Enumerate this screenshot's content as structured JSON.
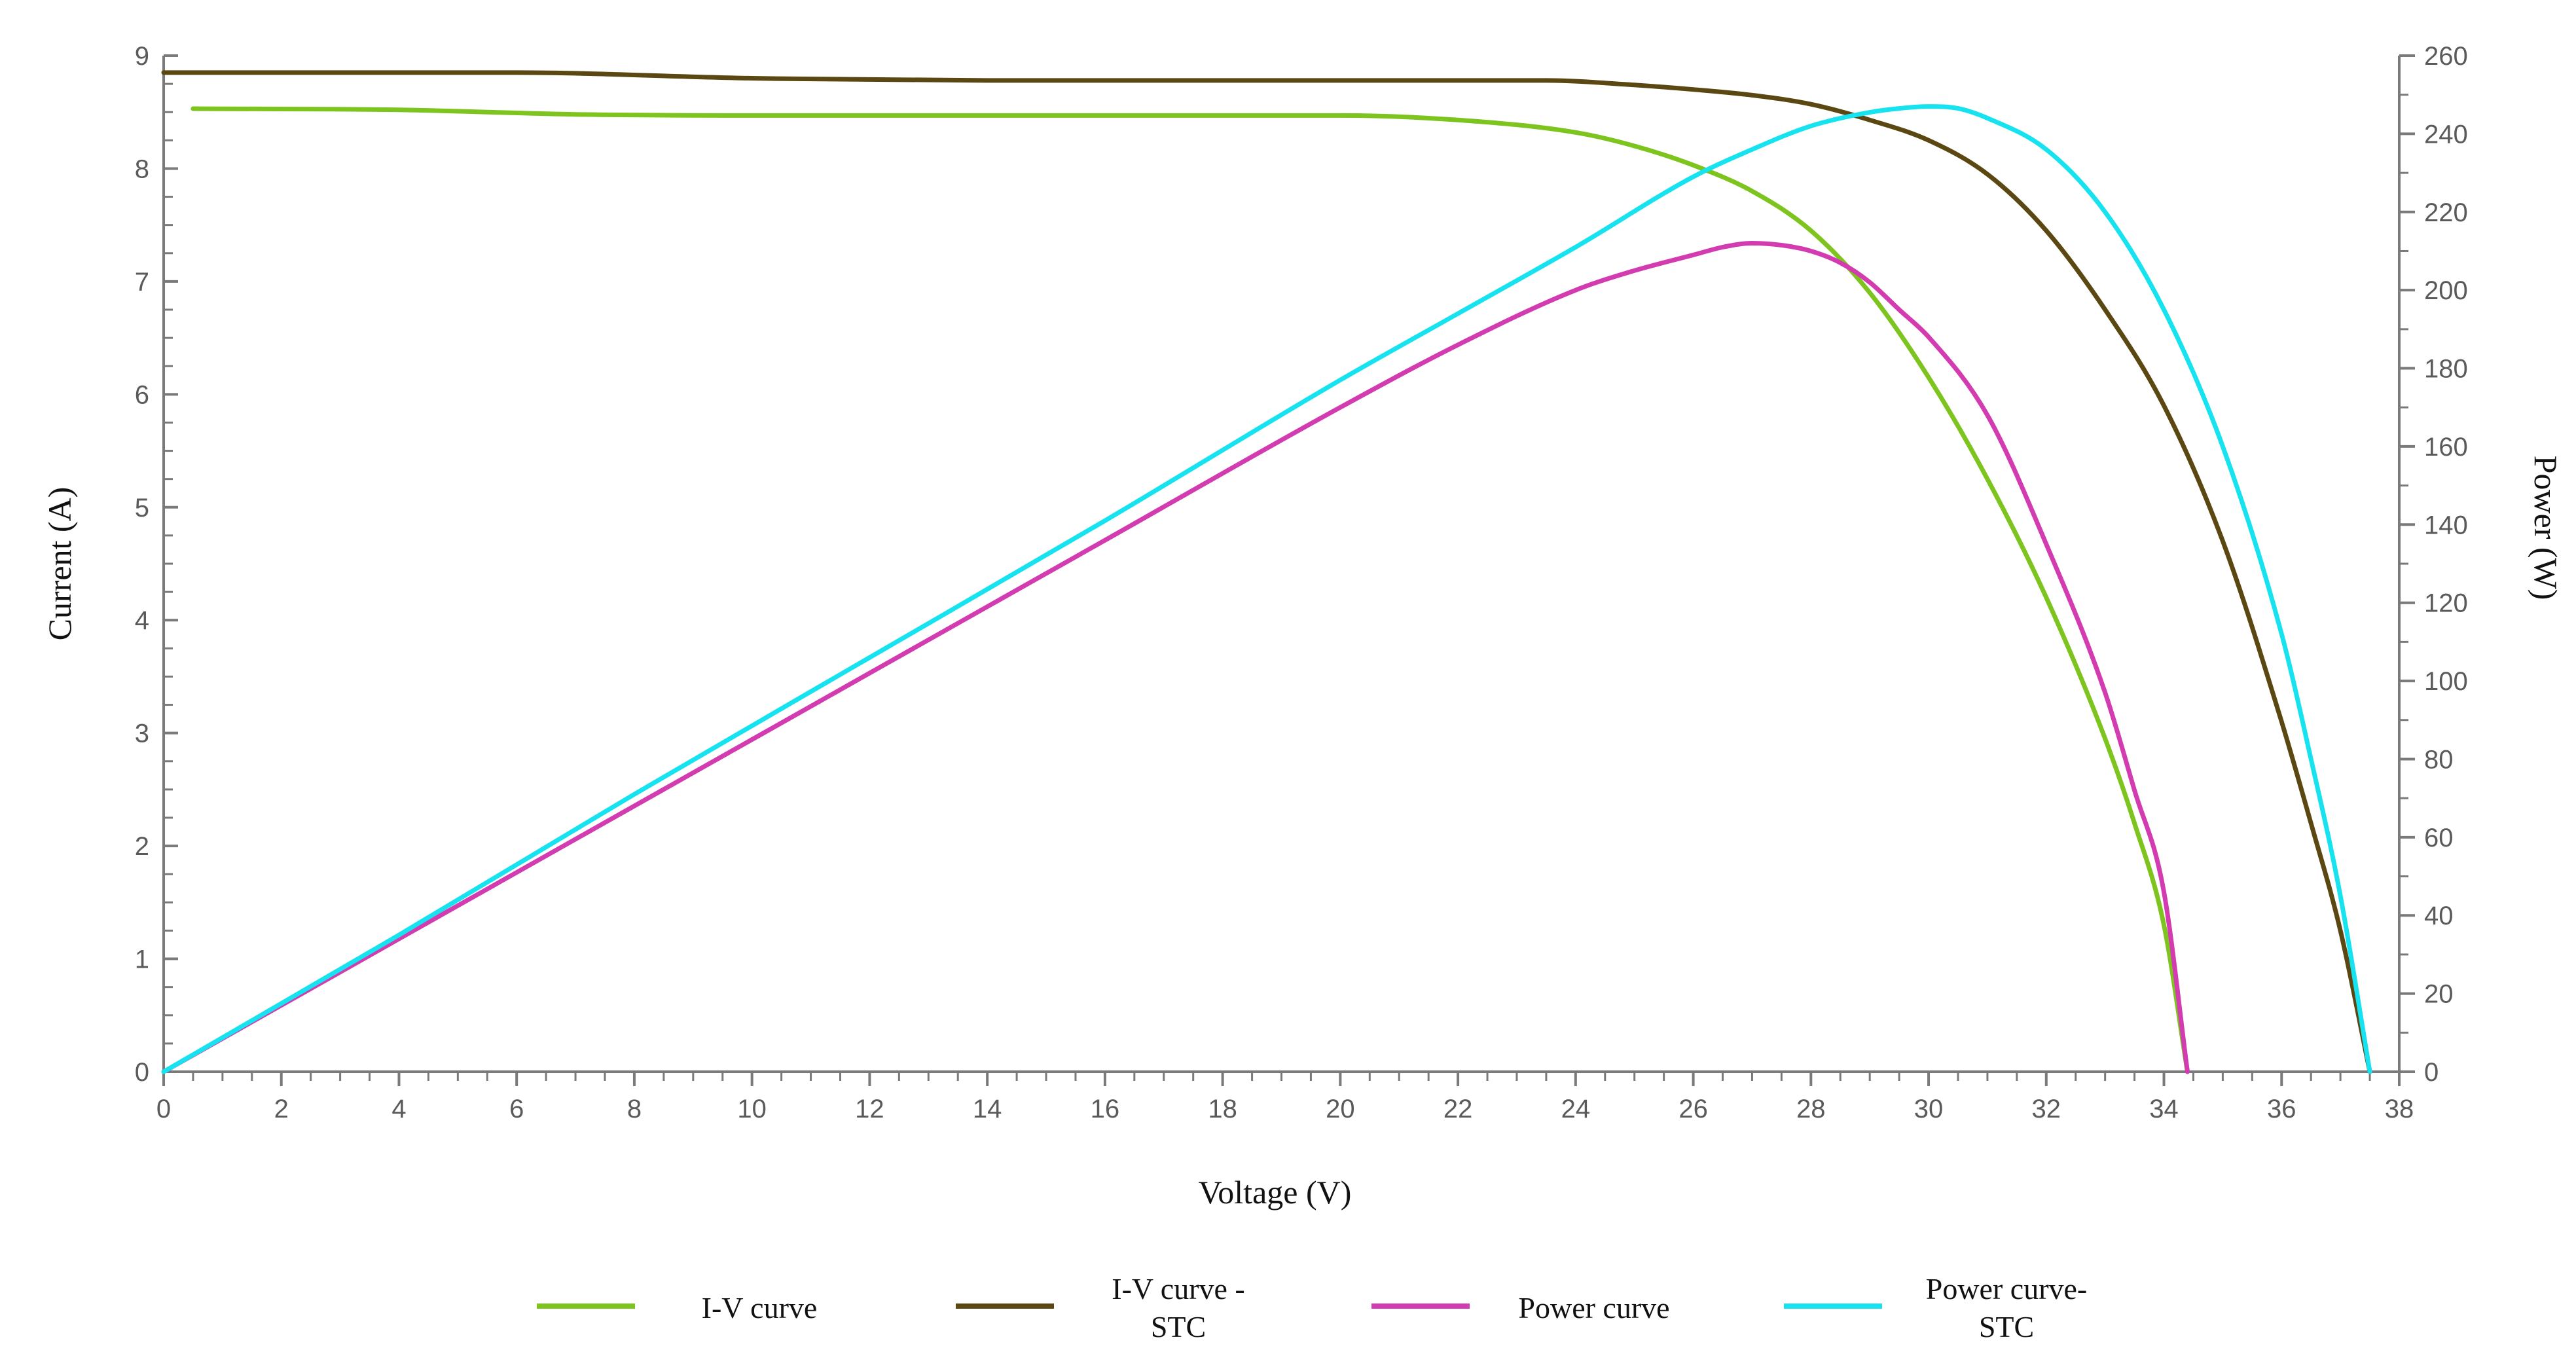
{
  "chart_data": {
    "type": "line",
    "title": "",
    "xlabel": "Voltage (V)",
    "ylabel": "Current (A)",
    "y2label": "Power (W)",
    "xlim": [
      0,
      38
    ],
    "ylim": [
      0,
      9
    ],
    "y2lim": [
      0,
      260
    ],
    "x_ticks": [
      "0",
      "2",
      "4",
      "6",
      "8",
      "10",
      "12",
      "14",
      "16",
      "18",
      "20",
      "22",
      "24",
      "26",
      "28",
      "30",
      "32",
      "34",
      "36",
      "38"
    ],
    "y_ticks": [
      "0",
      "1",
      "2",
      "3",
      "4",
      "5",
      "6",
      "7",
      "8",
      "9"
    ],
    "y2_ticks": [
      "0",
      "20",
      "40",
      "60",
      "80",
      "100",
      "120",
      "140",
      "160",
      "180",
      "200",
      "220",
      "240",
      "260"
    ],
    "grid": false,
    "legend_position": "bottom",
    "series": [
      {
        "name": "I-V curve",
        "axis": "left",
        "color": "#7dc41f",
        "x": [
          0.5,
          4,
          7,
          12,
          16,
          20,
          22,
          24,
          25,
          26,
          27,
          28,
          29,
          30,
          31,
          32,
          33,
          33.5,
          34,
          34.4
        ],
        "y": [
          8.53,
          8.52,
          8.48,
          8.47,
          8.47,
          8.47,
          8.43,
          8.32,
          8.2,
          8.03,
          7.8,
          7.45,
          6.9,
          6.15,
          5.25,
          4.2,
          2.95,
          2.2,
          1.3,
          0
        ]
      },
      {
        "name": "I-V curve - STC",
        "axis": "left",
        "color": "#5b4711",
        "x": [
          0,
          6,
          10,
          14,
          18,
          22,
          23.5,
          25,
          26,
          27,
          28,
          29,
          30,
          31,
          32,
          33,
          34,
          35,
          36,
          36.5,
          37,
          37.5
        ],
        "y": [
          8.85,
          8.85,
          8.8,
          8.78,
          8.78,
          8.78,
          8.78,
          8.74,
          8.7,
          8.65,
          8.57,
          8.43,
          8.25,
          7.95,
          7.45,
          6.75,
          5.9,
          4.7,
          3.1,
          2.2,
          1.25,
          0
        ]
      },
      {
        "name": "Power curve",
        "axis": "right",
        "color": "#d23cb0",
        "x": [
          0,
          4,
          8,
          12,
          16,
          20,
          22,
          24,
          25,
          26,
          26.5,
          27,
          27.5,
          28,
          28.5,
          29,
          29.5,
          30,
          31,
          32,
          33,
          33.5,
          34,
          34.4
        ],
        "y": [
          0,
          34,
          68,
          102,
          136,
          170,
          186,
          200,
          205,
          209,
          211,
          212,
          211.5,
          210,
          207,
          202,
          195,
          188,
          168,
          135,
          97,
          72,
          46,
          0
        ]
      },
      {
        "name": "Power curve-STC",
        "axis": "right",
        "color": "#17e3f0",
        "x": [
          0,
          4,
          8,
          12,
          16,
          20,
          22,
          24,
          26,
          27,
          28,
          29,
          29.5,
          30,
          30.5,
          31,
          32,
          33,
          34,
          35,
          36,
          36.5,
          37,
          37.5
        ],
        "y": [
          0,
          35,
          71,
          106,
          141,
          177,
          194,
          211,
          229,
          236,
          242,
          245.5,
          246.5,
          247,
          246.5,
          244,
          236,
          220,
          195,
          160,
          112,
          80,
          45,
          0
        ]
      }
    ]
  },
  "legend": {
    "items": [
      {
        "lines": [
          "I-V curve"
        ],
        "color": "#7dc41f"
      },
      {
        "lines": [
          "I-V curve -",
          "STC"
        ],
        "color": "#5b4711"
      },
      {
        "lines": [
          "Power curve"
        ],
        "color": "#d23cb0"
      },
      {
        "lines": [
          "Power curve-",
          "STC"
        ],
        "color": "#17e3f0"
      }
    ]
  }
}
